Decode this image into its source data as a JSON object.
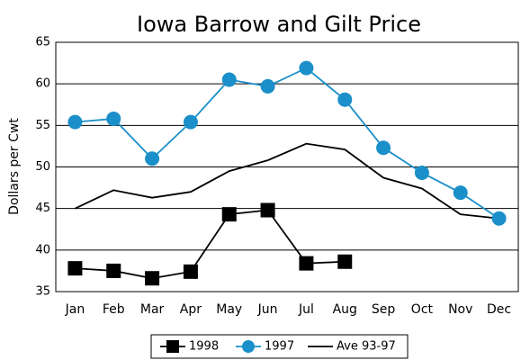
{
  "chart_data": {
    "type": "line",
    "title": "Iowa Barrow and Gilt Price",
    "y_label": "Dollars per Cwt",
    "categories": [
      "Jan",
      "Feb",
      "Mar",
      "Apr",
      "May",
      "Jun",
      "Jul",
      "Aug",
      "Sep",
      "Oct",
      "Nov",
      "Dec"
    ],
    "series": [
      {
        "name": "1998",
        "color": "#000000",
        "marker": "square",
        "values": [
          37.8,
          37.5,
          36.6,
          37.4,
          44.3,
          44.8,
          38.4,
          38.6,
          null,
          null,
          null,
          null
        ]
      },
      {
        "name": "1997",
        "color": "#1a8fc9",
        "marker": "circle",
        "values": [
          55.4,
          55.8,
          51.0,
          55.4,
          60.5,
          59.7,
          61.9,
          58.1,
          52.3,
          49.3,
          46.9,
          43.8
        ]
      },
      {
        "name": "Ave 93-97",
        "color": "#000000",
        "marker": "none",
        "values": [
          45.0,
          47.2,
          46.3,
          47.0,
          49.5,
          50.8,
          52.8,
          52.1,
          48.7,
          47.4,
          44.3,
          43.8
        ]
      }
    ],
    "ylim": [
      35,
      65
    ],
    "yticks": [
      35,
      40,
      45,
      50,
      55,
      60,
      65
    ],
    "grid": true,
    "legend": "bottom"
  }
}
